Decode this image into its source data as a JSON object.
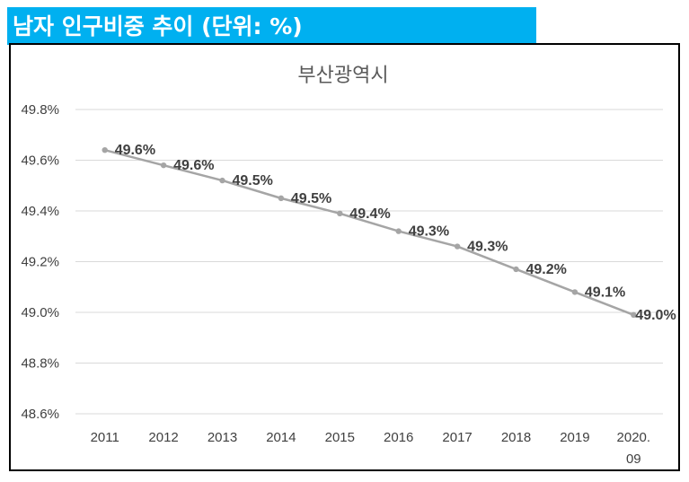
{
  "header": {
    "title": "남자 인구비중 추이 (단위: %)"
  },
  "colors": {
    "header_bg": "#00b0f0",
    "line": "#a5a5a5",
    "gridline": "#d9d9d9",
    "text": "#404040",
    "title": "#595959"
  },
  "chart_data": {
    "type": "line",
    "title": "부산광역시",
    "xlabel": "",
    "ylabel": "",
    "categories": [
      "2011",
      "2012",
      "2013",
      "2014",
      "2015",
      "2016",
      "2017",
      "2018",
      "2019",
      "2020.\n09"
    ],
    "series": [
      {
        "name": "남자 인구비중",
        "values": [
          49.64,
          49.58,
          49.52,
          49.45,
          49.39,
          49.32,
          49.26,
          49.17,
          49.08,
          48.99
        ],
        "labels": [
          "49.6%",
          "49.6%",
          "49.5%",
          "49.5%",
          "49.4%",
          "49.3%",
          "49.3%",
          "49.2%",
          "49.1%",
          "49.0%"
        ]
      }
    ],
    "ylim": [
      48.6,
      49.8
    ],
    "yticks": [
      48.6,
      48.8,
      49.0,
      49.2,
      49.4,
      49.6,
      49.8
    ],
    "ytick_labels": [
      "48.6%",
      "48.8%",
      "49.0%",
      "49.2%",
      "49.4%",
      "49.6%",
      "49.8%"
    ],
    "grid": true,
    "legend": "none"
  }
}
